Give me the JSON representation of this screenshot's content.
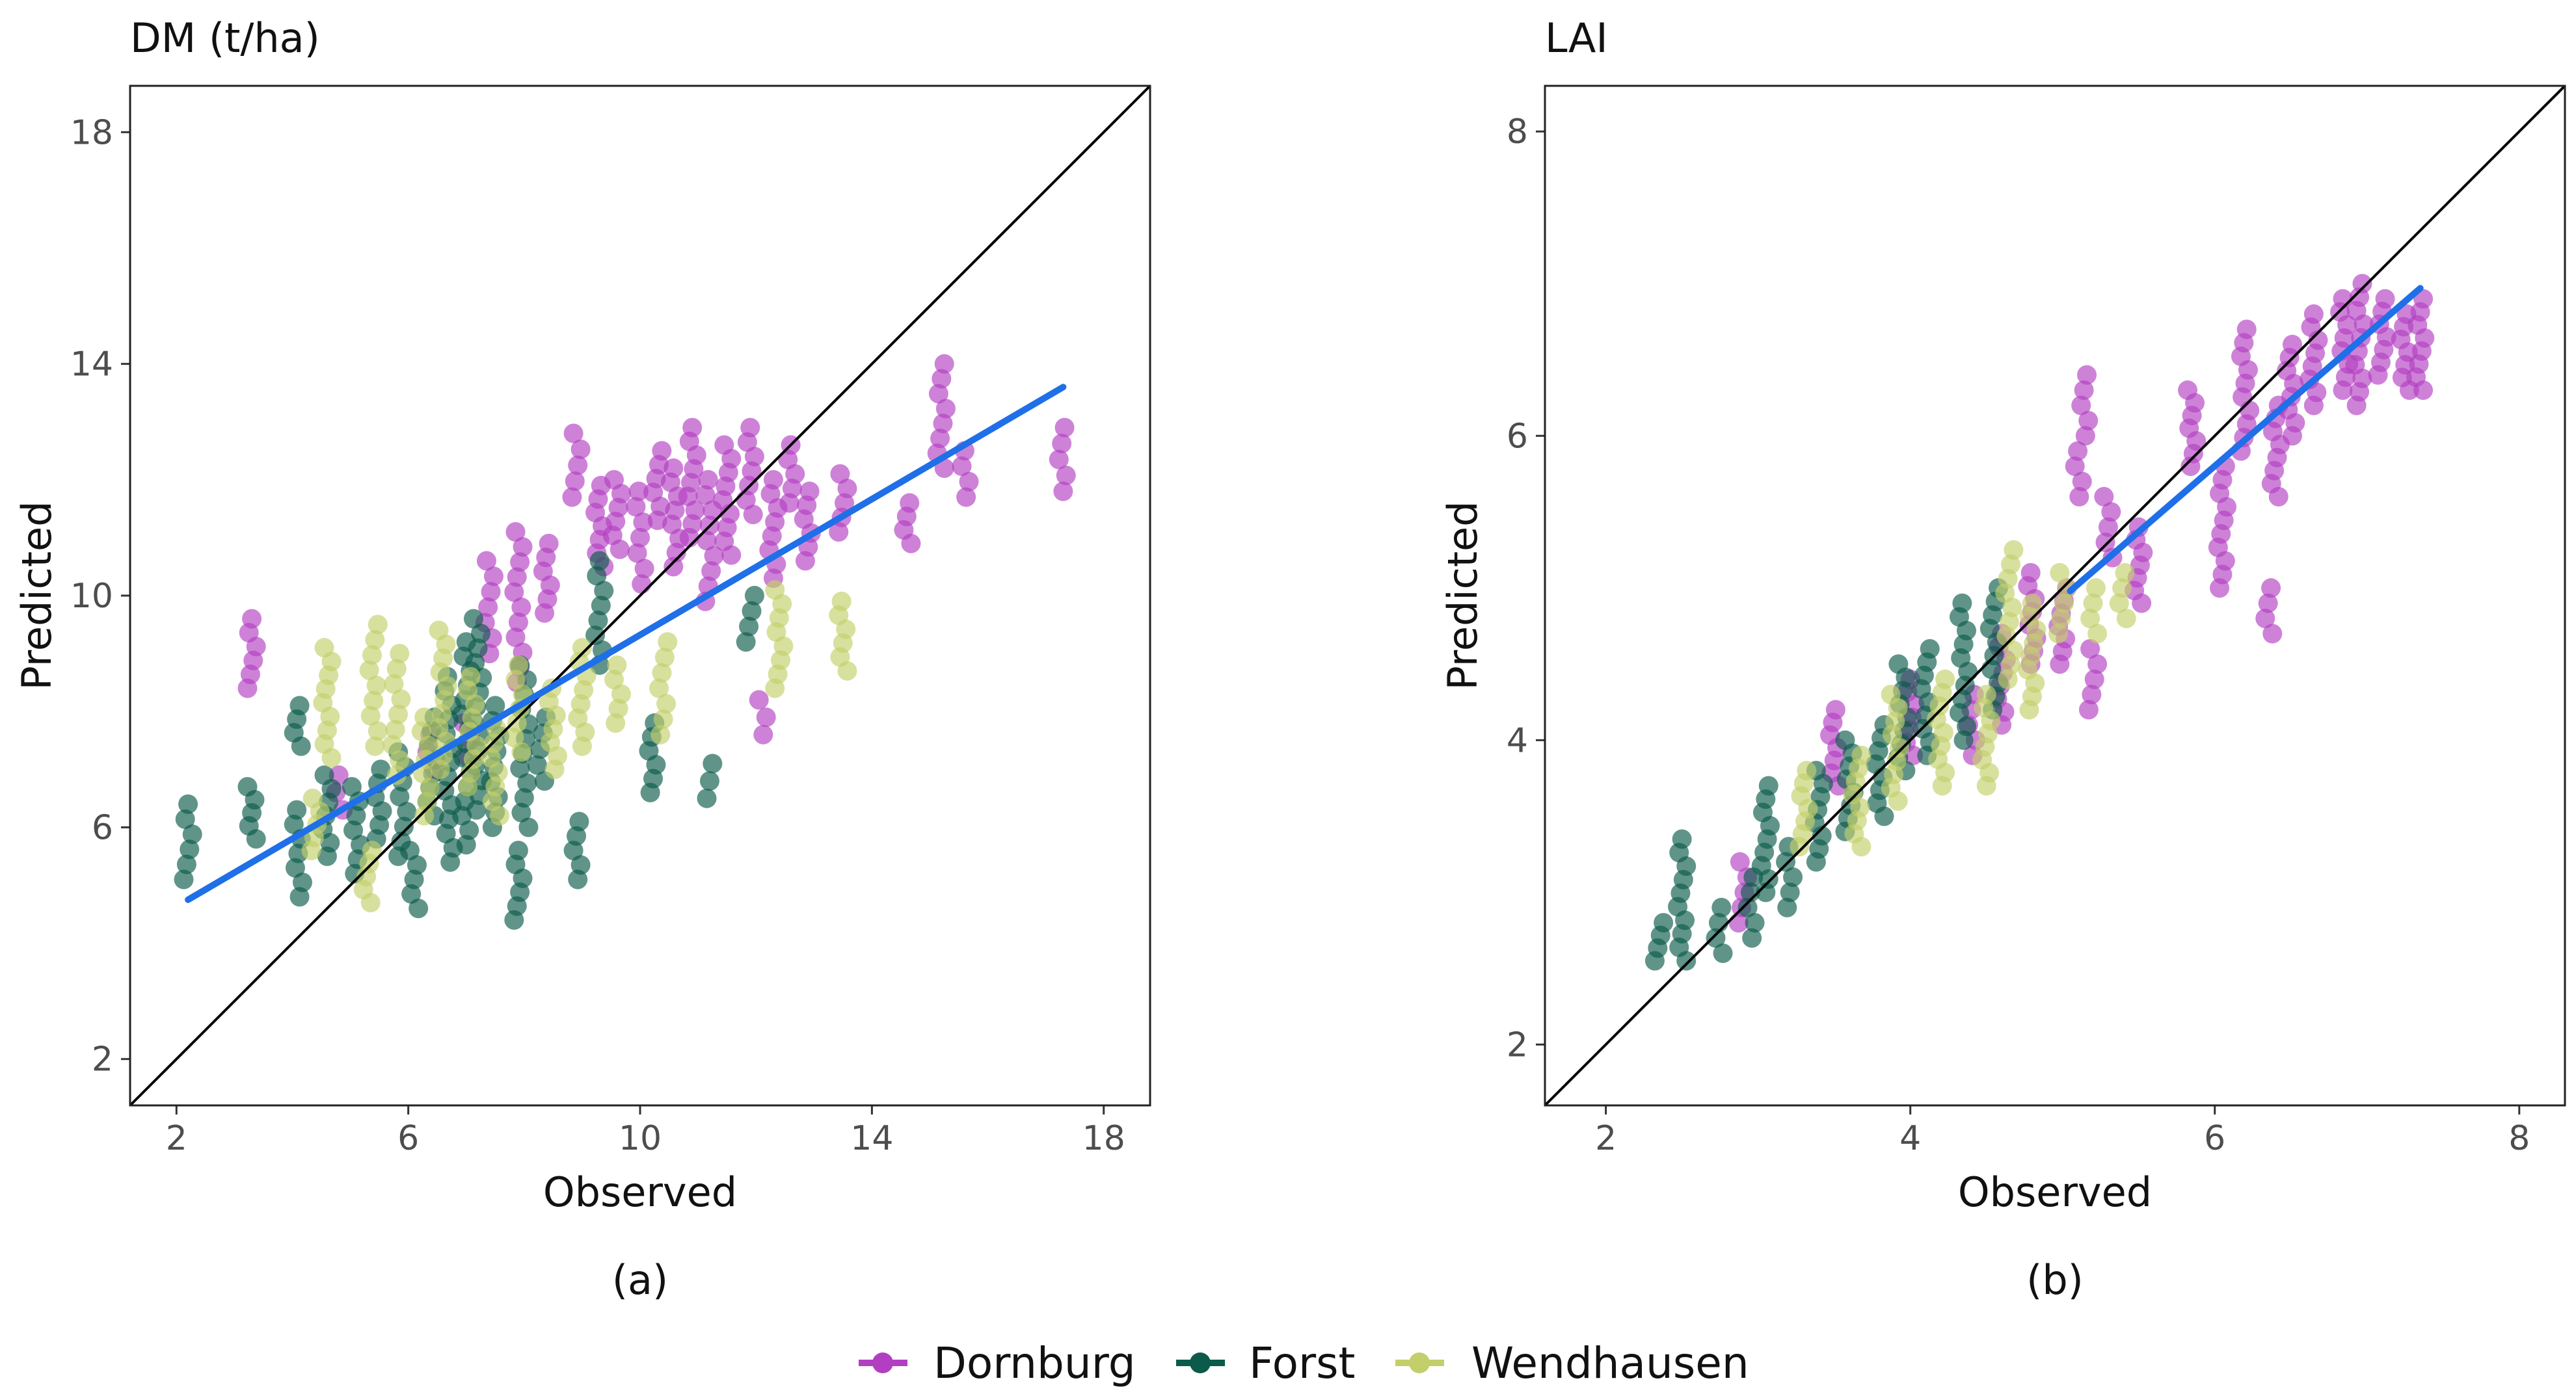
{
  "colors": {
    "dornburg": "#b23fc1",
    "forst": "#0b5a4a",
    "wendhausen": "#c3cf6a",
    "fit_line": "#1f6fe8",
    "identity_line": "#000000"
  },
  "legend": {
    "entries": [
      {
        "name": "Dornburg",
        "color": "#b23fc1"
      },
      {
        "name": "Forst",
        "color": "#0b5a4a"
      },
      {
        "name": "Wendhausen",
        "color": "#c3cf6a"
      }
    ]
  },
  "chart_data": [
    {
      "type": "scatter",
      "title": "DM (t/ha)",
      "caption": "(a)",
      "xlabel": "Observed",
      "ylabel": "Predicted",
      "xlim": [
        1.2,
        18.8
      ],
      "ylim": [
        1.2,
        18.8
      ],
      "xticks": [
        "2",
        "6",
        "10",
        "14",
        "18"
      ],
      "yticks": [
        "2",
        "6",
        "10",
        "14",
        "18"
      ],
      "identity_line": [
        [
          1.2,
          1.2
        ],
        [
          18.8,
          18.8
        ]
      ],
      "fit_line": [
        [
          2.2,
          4.75
        ],
        [
          17.3,
          13.6
        ]
      ],
      "series": [
        {
          "name": "Dornburg",
          "clusters": [
            [
              3.3,
              8.4,
              9.6
            ],
            [
              4.8,
              6.3,
              6.9
            ],
            [
              6.4,
              7.0,
              7.6
            ],
            [
              7.0,
              7.2,
              7.8
            ],
            [
              7.4,
              9.0,
              10.6
            ],
            [
              7.9,
              8.5,
              11.1
            ],
            [
              8.4,
              9.7,
              10.9
            ],
            [
              8.9,
              11.7,
              12.8
            ],
            [
              9.3,
              10.5,
              11.9
            ],
            [
              9.6,
              10.8,
              12.0
            ],
            [
              10.0,
              10.2,
              11.8
            ],
            [
              10.3,
              11.3,
              12.5
            ],
            [
              10.6,
              10.5,
              12.2
            ],
            [
              10.9,
              11.0,
              12.9
            ],
            [
              11.2,
              9.9,
              12.0
            ],
            [
              11.5,
              10.7,
              12.6
            ],
            [
              11.9,
              11.4,
              12.9
            ],
            [
              12.1,
              7.6,
              8.2
            ],
            [
              12.3,
              10.3,
              12.0
            ],
            [
              12.6,
              11.6,
              12.6
            ],
            [
              12.9,
              10.6,
              11.8
            ],
            [
              13.5,
              11.1,
              12.1
            ],
            [
              14.6,
              10.9,
              11.6
            ],
            [
              15.2,
              12.2,
              14.0
            ],
            [
              15.6,
              11.7,
              12.5
            ],
            [
              17.3,
              11.8,
              12.9
            ]
          ]
        },
        {
          "name": "Forst",
          "clusters": [
            [
              2.2,
              5.1,
              6.4
            ],
            [
              3.3,
              5.8,
              6.7
            ],
            [
              4.1,
              7.4,
              8.1
            ],
            [
              4.1,
              4.8,
              6.3
            ],
            [
              4.6,
              5.5,
              6.9
            ],
            [
              5.1,
              5.2,
              6.7
            ],
            [
              5.5,
              5.8,
              7.0
            ],
            [
              5.9,
              5.5,
              7.3
            ],
            [
              6.1,
              4.6,
              5.6
            ],
            [
              6.4,
              6.2,
              7.9
            ],
            [
              6.7,
              5.4,
              8.6
            ],
            [
              7.0,
              5.7,
              9.2
            ],
            [
              7.2,
              6.3,
              9.6
            ],
            [
              7.5,
              6.0,
              8.1
            ],
            [
              7.9,
              4.4,
              5.6
            ],
            [
              8.0,
              6.0,
              8.8
            ],
            [
              8.3,
              6.8,
              7.9
            ],
            [
              8.9,
              5.1,
              6.1
            ],
            [
              9.3,
              8.8,
              10.6
            ],
            [
              10.2,
              6.6,
              7.8
            ],
            [
              11.2,
              6.5,
              7.1
            ],
            [
              11.9,
              9.2,
              10.0
            ]
          ]
        },
        {
          "name": "Wendhausen",
          "clusters": [
            [
              4.4,
              5.6,
              6.5
            ],
            [
              4.6,
              7.2,
              9.1
            ],
            [
              5.3,
              4.7,
              5.6
            ],
            [
              5.4,
              7.4,
              9.5
            ],
            [
              5.8,
              6.9,
              9.0
            ],
            [
              6.3,
              6.2,
              7.9
            ],
            [
              6.6,
              7.0,
              9.4
            ],
            [
              7.1,
              6.7,
              8.6
            ],
            [
              7.5,
              6.2,
              7.7
            ],
            [
              7.9,
              7.3,
              8.8
            ],
            [
              8.5,
              7.0,
              8.4
            ],
            [
              9.0,
              7.4,
              9.1
            ],
            [
              9.6,
              7.8,
              8.8
            ],
            [
              10.4,
              7.6,
              9.2
            ],
            [
              12.4,
              8.4,
              10.1
            ],
            [
              13.5,
              8.7,
              9.9
            ]
          ]
        }
      ]
    },
    {
      "type": "scatter",
      "title": "LAI",
      "caption": "(b)",
      "xlabel": "Observed",
      "ylabel": "Predicted",
      "xlim": [
        1.6,
        8.3
      ],
      "ylim": [
        1.6,
        8.3
      ],
      "xticks": [
        "2",
        "4",
        "6",
        "8"
      ],
      "yticks": [
        "2",
        "4",
        "6",
        "8"
      ],
      "identity_line": [
        [
          1.6,
          1.6
        ],
        [
          8.3,
          8.3
        ]
      ],
      "fit_line": [
        [
          5.05,
          4.98
        ],
        [
          7.35,
          6.97
        ]
      ],
      "series": [
        {
          "name": "Dornburg",
          "clusters": [
            [
              2.9,
              2.8,
              3.2
            ],
            [
              3.5,
              3.7,
              4.2
            ],
            [
              4.0,
              3.9,
              4.4
            ],
            [
              4.4,
              3.9,
              4.3
            ],
            [
              4.6,
              4.1,
              4.7
            ],
            [
              4.8,
              4.5,
              5.1
            ],
            [
              5.0,
              4.5,
              5.0
            ],
            [
              5.2,
              4.2,
              4.6
            ],
            [
              5.3,
              5.2,
              5.6
            ],
            [
              5.5,
              4.9,
              5.4
            ],
            [
              5.1,
              5.6,
              5.9
            ],
            [
              5.15,
              6.0,
              6.4
            ],
            [
              5.85,
              5.8,
              6.3
            ],
            [
              6.05,
              5.0,
              5.8
            ],
            [
              6.2,
              5.9,
              6.7
            ],
            [
              6.35,
              4.7,
              5.0
            ],
            [
              6.4,
              5.6,
              6.2
            ],
            [
              6.5,
              6.0,
              6.6
            ],
            [
              6.65,
              6.2,
              6.8
            ],
            [
              6.85,
              6.3,
              6.9
            ],
            [
              6.95,
              6.2,
              7.0
            ],
            [
              7.1,
              6.4,
              6.9
            ],
            [
              7.25,
              6.3,
              6.8
            ],
            [
              7.35,
              6.3,
              6.9
            ]
          ]
        },
        {
          "name": "Forst",
          "clusters": [
            [
              2.35,
              2.55,
              2.8
            ],
            [
              2.5,
              2.55,
              3.35
            ],
            [
              2.75,
              2.6,
              2.9
            ],
            [
              2.95,
              2.7,
              3.1
            ],
            [
              3.05,
              3.0,
              3.7
            ],
            [
              3.2,
              2.9,
              3.3
            ],
            [
              3.4,
              3.2,
              3.8
            ],
            [
              3.6,
              3.4,
              4.0
            ],
            [
              3.8,
              3.5,
              4.1
            ],
            [
              3.95,
              3.8,
              4.5
            ],
            [
              4.1,
              3.9,
              4.6
            ],
            [
              4.35,
              4.0,
              4.9
            ],
            [
              4.55,
              4.2,
              5.0
            ]
          ]
        },
        {
          "name": "Wendhausen",
          "clusters": [
            [
              3.3,
              3.3,
              3.8
            ],
            [
              3.65,
              3.3,
              3.9
            ],
            [
              3.9,
              3.6,
              4.3
            ],
            [
              4.2,
              3.7,
              4.4
            ],
            [
              4.5,
              3.7,
              4.3
            ],
            [
              4.65,
              4.4,
              5.25
            ],
            [
              4.8,
              4.2,
              4.9
            ],
            [
              5.0,
              4.7,
              5.1
            ],
            [
              5.2,
              4.7,
              5.0
            ],
            [
              5.4,
              4.8,
              5.1
            ]
          ]
        }
      ]
    }
  ]
}
